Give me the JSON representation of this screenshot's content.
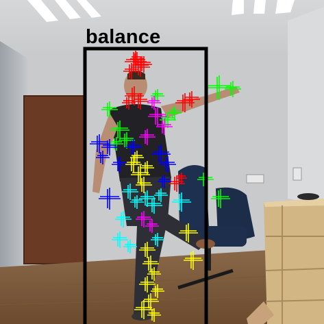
{
  "annotation": {
    "label": "balance",
    "box_color": "#000000"
  },
  "joint_marker_colors": {
    "head": "#ff0000",
    "torso_left": "#00ff00",
    "torso_right": "#ff00ff",
    "left_arm": "#0000ff",
    "right_arm": "#00ff00",
    "hips": "#ffff00",
    "legs": "#00ffff",
    "feet": "#ffff00"
  }
}
